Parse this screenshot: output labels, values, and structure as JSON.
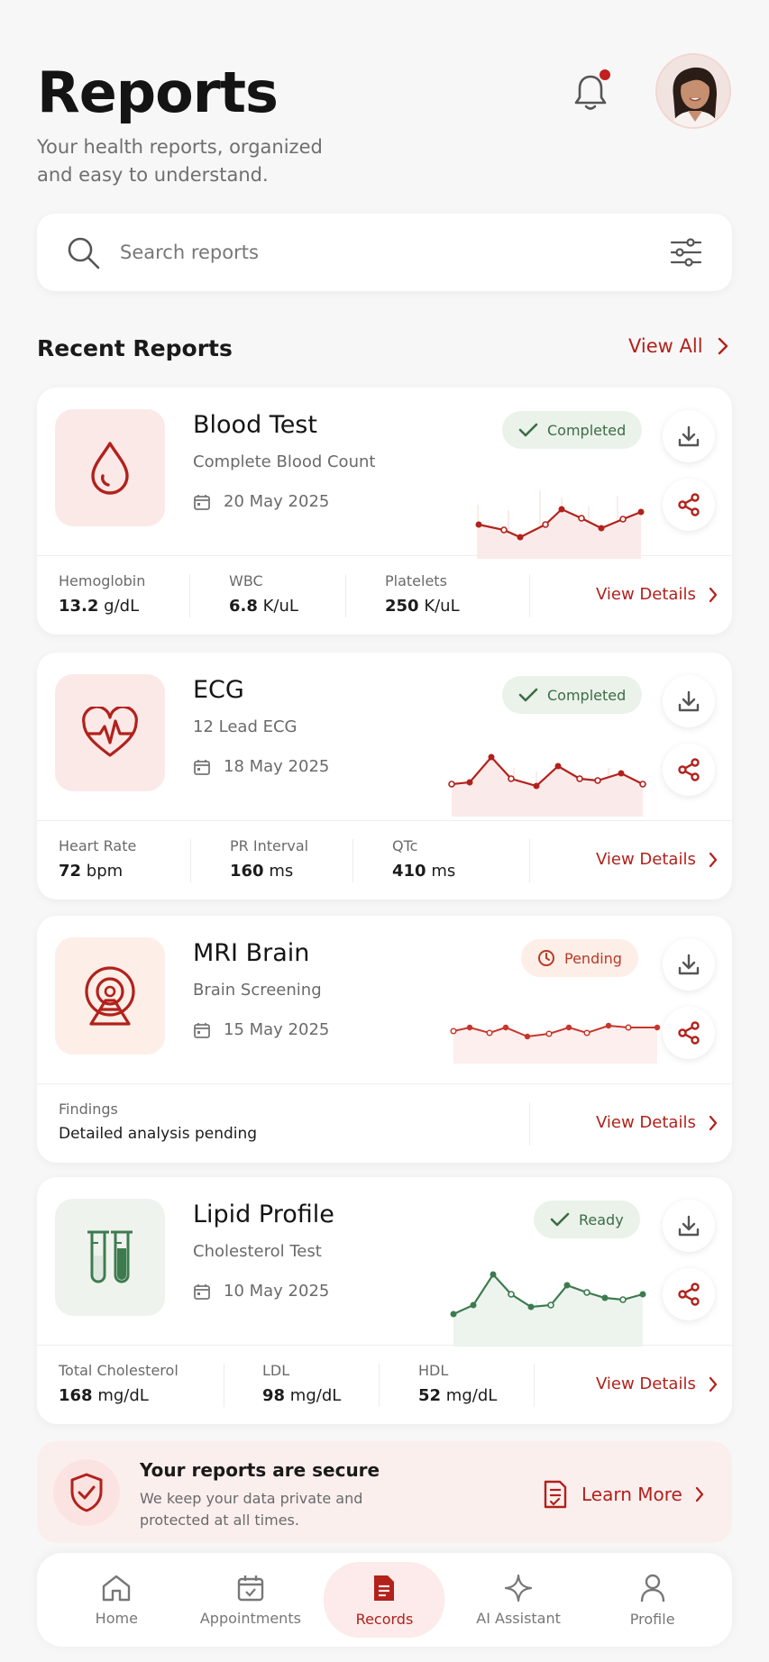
{
  "header": {
    "title": "Reports",
    "subtitle": "Your health reports, organized and easy to understand."
  },
  "search": {
    "placeholder": "Search reports"
  },
  "recent": {
    "title": "Recent Reports",
    "view_all": "View All"
  },
  "colors": {
    "accent": "#b2211b",
    "green": "#3d7b4f",
    "bg": "#f8f7f7"
  },
  "reports": [
    {
      "title": "Blood Test",
      "subtitle": "Complete Blood Count",
      "date": "20 May 2025",
      "status": "Completed",
      "icon": "blood-drop-icon",
      "metrics": [
        {
          "label": "Hemoglobin",
          "value": "13.2",
          "unit": "g/dL"
        },
        {
          "label": "WBC",
          "value": "6.8",
          "unit": "K/uL"
        },
        {
          "label": "Platelets",
          "value": "250",
          "unit": "K/uL"
        }
      ],
      "view_details": "View Details"
    },
    {
      "title": "ECG",
      "subtitle": "12 Lead ECG",
      "date": "18 May 2025",
      "status": "Completed",
      "icon": "heart-pulse-icon",
      "metrics": [
        {
          "label": "Heart Rate",
          "value": "72",
          "unit": "bpm"
        },
        {
          "label": "PR Interval",
          "value": "160",
          "unit": "ms"
        },
        {
          "label": "QTc",
          "value": "410",
          "unit": "ms"
        }
      ],
      "view_details": "View Details"
    },
    {
      "title": "MRI Brain",
      "subtitle": "Brain Screening",
      "date": "15 May 2025",
      "status": "Pending",
      "icon": "mri-scanner-icon",
      "findings_label": "Findings",
      "findings_value": "Detailed analysis pending",
      "view_details": "View Details"
    },
    {
      "title": "Lipid Profile",
      "subtitle": "Cholesterol Test",
      "date": "10 May 2025",
      "status": "Ready",
      "icon": "test-tubes-icon",
      "metrics": [
        {
          "label": "Total Cholesterol",
          "value": "168",
          "unit": "mg/dL"
        },
        {
          "label": "LDL",
          "value": "98",
          "unit": "mg/dL"
        },
        {
          "label": "HDL",
          "value": "52",
          "unit": "mg/dL"
        }
      ],
      "view_details": "View Details"
    }
  ],
  "secure": {
    "title": "Your reports are secure",
    "body": "We keep your data private and protected at all times.",
    "learn_more": "Learn More"
  },
  "nav": [
    {
      "label": "Home",
      "icon": "home-icon"
    },
    {
      "label": "Appointments",
      "icon": "calendar-icon"
    },
    {
      "label": "Records",
      "icon": "document-icon",
      "active": true
    },
    {
      "label": "AI Assistant",
      "icon": "sparkle-icon"
    },
    {
      "label": "Profile",
      "icon": "person-icon"
    }
  ]
}
